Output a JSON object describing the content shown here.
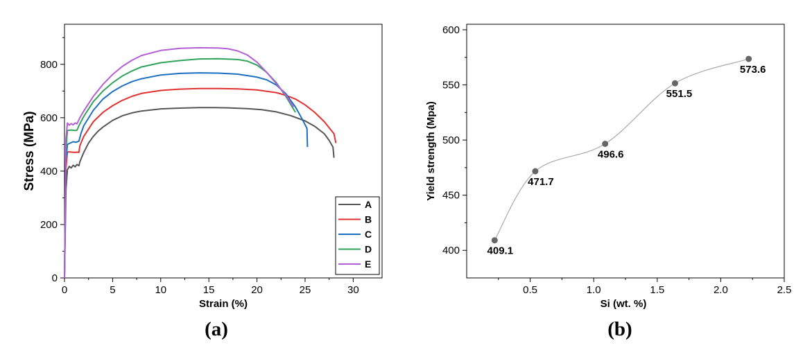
{
  "chart_data": [
    {
      "type": "line",
      "panel": "(a)",
      "xlabel": "Strain (%)",
      "ylabel": "Stress (MPa)",
      "xlim": [
        0,
        33
      ],
      "ylim": [
        0,
        950
      ],
      "xticks": [
        0,
        5,
        10,
        15,
        20,
        25,
        30
      ],
      "yticks": [
        0,
        200,
        400,
        600,
        800
      ],
      "legend_position": "bottom-right",
      "grid": false,
      "series": [
        {
          "name": "A",
          "color": "#555555",
          "x": [
            0,
            0.15,
            0.3,
            0.5,
            0.7,
            0.9,
            1.1,
            1.3,
            1.5,
            1.6,
            2,
            2.5,
            3,
            3.5,
            4,
            5,
            6,
            7,
            8,
            10,
            12,
            14,
            15.5,
            17,
            19,
            20.5,
            22,
            23.5,
            25,
            26,
            27,
            27.5,
            27.9,
            28
          ],
          "y": [
            0,
            330,
            405,
            418,
            412,
            422,
            416,
            425,
            420,
            435,
            470,
            505,
            530,
            550,
            565,
            590,
            607,
            618,
            625,
            633,
            636,
            638,
            638,
            637,
            634,
            630,
            622,
            608,
            588,
            568,
            540,
            515,
            490,
            450
          ]
        },
        {
          "name": "B",
          "color": "#e03131",
          "x": [
            0,
            0.15,
            0.3,
            0.6,
            1,
            1.4,
            1.5,
            1.6,
            2,
            3,
            4,
            5,
            6,
            7,
            8,
            10,
            12,
            14,
            16,
            18,
            20,
            22,
            23,
            24,
            25,
            26,
            27,
            28,
            28.2
          ],
          "y": [
            0,
            410,
            472,
            472,
            470,
            471,
            470,
            495,
            530,
            585,
            620,
            645,
            665,
            680,
            691,
            702,
            707,
            709,
            709,
            708,
            704,
            694,
            684,
            670,
            648,
            620,
            585,
            540,
            505
          ]
        },
        {
          "name": "C",
          "color": "#1c6fbf",
          "x": [
            0,
            0.15,
            0.3,
            0.6,
            0.9,
            1.2,
            1.5,
            1.7,
            2,
            3,
            4,
            5,
            6,
            7,
            8,
            10,
            12,
            14,
            16,
            18,
            20,
            21,
            22,
            23,
            24,
            24.7,
            25.2,
            25.25
          ],
          "y": [
            0,
            440,
            500,
            505,
            510,
            508,
            512,
            540,
            570,
            628,
            670,
            698,
            719,
            735,
            746,
            760,
            766,
            768,
            767,
            763,
            752,
            742,
            723,
            690,
            640,
            595,
            560,
            490
          ]
        },
        {
          "name": "D",
          "color": "#2fa35a",
          "x": [
            0,
            0.15,
            0.3,
            0.7,
            1.1,
            1.3,
            1.5,
            2,
            3,
            4,
            5,
            6,
            7,
            8,
            10,
            12,
            14,
            16,
            18,
            19,
            20,
            21,
            22,
            23,
            24
          ],
          "y": [
            0,
            480,
            552,
            554,
            552,
            553,
            570,
            605,
            660,
            700,
            731,
            756,
            775,
            790,
            806,
            814,
            820,
            821,
            818,
            812,
            797,
            770,
            732,
            680,
            620
          ]
        },
        {
          "name": "E",
          "color": "#b35fd6",
          "x": [
            0,
            0.15,
            0.3,
            0.5,
            0.7,
            0.9,
            1.1,
            1.3,
            1.6,
            2,
            3,
            4,
            5,
            6,
            7,
            8,
            10,
            12,
            14,
            16,
            17,
            18,
            19,
            20,
            21,
            22,
            23,
            23.8
          ],
          "y": [
            0,
            520,
            580,
            572,
            578,
            573,
            580,
            577,
            600,
            625,
            680,
            725,
            762,
            792,
            815,
            833,
            852,
            860,
            862,
            861,
            858,
            850,
            835,
            808,
            770,
            728,
            685,
            640
          ]
        }
      ]
    },
    {
      "type": "scatter",
      "panel": "(b)",
      "xlabel": "Si (wt. %)",
      "ylabel": "Yield strength (Mpa)",
      "xlim": [
        0,
        2.5
      ],
      "ylim": [
        375,
        605
      ],
      "xticks": [
        0.5,
        1.0,
        1.5,
        2.0,
        2.5
      ],
      "xtick_labels": [
        "0.5",
        "1.0",
        "1.5",
        "2.0",
        "2.5"
      ],
      "yticks": [
        400,
        450,
        500,
        550,
        600
      ],
      "grid": false,
      "smooth_line": true,
      "point_color": "#666666",
      "x": [
        0.22,
        0.54,
        1.09,
        1.64,
        2.22
      ],
      "y": [
        409.1,
        471.7,
        496.6,
        551.5,
        573.6
      ],
      "point_labels": [
        "409.1",
        "471.7",
        "496.6",
        "551.5",
        "573.6"
      ]
    }
  ]
}
